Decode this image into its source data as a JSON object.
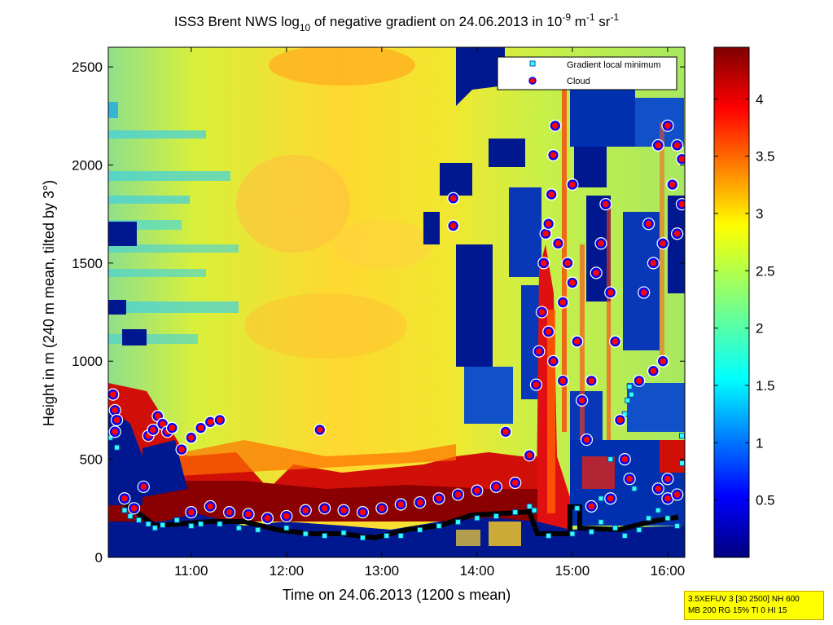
{
  "chart_data": {
    "type": "heatmap",
    "title": {
      "prefix": "ISS3 Brent NWS log",
      "log_base": "10",
      "middle": " of negative gradient on 24.06.2013 in 10",
      "exp1": "-9",
      "unit1": " m",
      "exp2": "-1",
      "unit2": " sr",
      "exp3": "-1"
    },
    "xlabel": "Time on 24.06.2013 (1200 s mean)",
    "ylabel": "Height in m (240 m mean, tilted by 3°)",
    "x_ticks": [
      {
        "value": 11.0,
        "label": "11:00"
      },
      {
        "value": 12.0,
        "label": "12:00"
      },
      {
        "value": 13.0,
        "label": "13:00"
      },
      {
        "value": 14.0,
        "label": "14:00"
      },
      {
        "value": 15.0,
        "label": "15:00"
      },
      {
        "value": 16.0,
        "label": "16:00"
      }
    ],
    "xlim": [
      10.13,
      16.18
    ],
    "ylim": [
      0,
      2600
    ],
    "y_ticks": [
      0,
      500,
      1000,
      1500,
      2000,
      2500
    ],
    "colorbar": {
      "colormap": "jet",
      "range": [
        0,
        4.45
      ],
      "ticks": [
        "0.5",
        "1",
        "1.5",
        "2",
        "2.5",
        "3",
        "3.5",
        "4"
      ]
    },
    "legend": {
      "placement": "top-right",
      "entries": [
        {
          "name": "Gradient local minimum",
          "marker": "square",
          "fill": "#33ffff",
          "edge": "#0055aa"
        },
        {
          "name": "Cloud",
          "marker": "circle",
          "fill": "#ff0000",
          "edge": "#0000ff"
        }
      ]
    },
    "series": [
      {
        "name": "Gradient local minimum",
        "points": [
          [
            10.15,
            610
          ],
          [
            10.22,
            560
          ],
          [
            10.3,
            240
          ],
          [
            10.36,
            210
          ],
          [
            10.45,
            190
          ],
          [
            10.55,
            170
          ],
          [
            10.62,
            150
          ],
          [
            10.7,
            165
          ],
          [
            10.85,
            190
          ],
          [
            11.0,
            160
          ],
          [
            11.1,
            170
          ],
          [
            11.3,
            170
          ],
          [
            11.5,
            150
          ],
          [
            11.7,
            140
          ],
          [
            12.0,
            150
          ],
          [
            12.2,
            120
          ],
          [
            12.4,
            110
          ],
          [
            12.6,
            125
          ],
          [
            12.8,
            100
          ],
          [
            13.05,
            110
          ],
          [
            13.2,
            110
          ],
          [
            13.4,
            140
          ],
          [
            13.6,
            160
          ],
          [
            13.8,
            180
          ],
          [
            14.0,
            200
          ],
          [
            14.2,
            210
          ],
          [
            14.4,
            230
          ],
          [
            14.55,
            260
          ],
          [
            14.6,
            240
          ],
          [
            14.75,
            110
          ],
          [
            15.0,
            120
          ],
          [
            15.05,
            250
          ],
          [
            15.2,
            130
          ],
          [
            15.3,
            180
          ],
          [
            15.45,
            150
          ],
          [
            15.55,
            110
          ],
          [
            15.55,
            730
          ],
          [
            15.6,
            870
          ],
          [
            15.58,
            800
          ],
          [
            15.62,
            830
          ],
          [
            15.7,
            140
          ],
          [
            15.8,
            200
          ],
          [
            15.9,
            240
          ],
          [
            16.0,
            200
          ],
          [
            16.1,
            160
          ],
          [
            16.15,
            480
          ],
          [
            16.15,
            620
          ],
          [
            15.65,
            350
          ],
          [
            15.4,
            500
          ],
          [
            15.3,
            300
          ]
        ]
      },
      {
        "name": "Cloud",
        "points": [
          [
            10.18,
            830
          ],
          [
            10.2,
            750
          ],
          [
            10.22,
            700
          ],
          [
            10.2,
            640
          ],
          [
            10.3,
            300
          ],
          [
            10.4,
            250
          ],
          [
            10.5,
            360
          ],
          [
            10.55,
            620
          ],
          [
            10.6,
            650
          ],
          [
            10.65,
            720
          ],
          [
            10.7,
            680
          ],
          [
            10.75,
            640
          ],
          [
            10.8,
            660
          ],
          [
            10.9,
            550
          ],
          [
            11.0,
            610
          ],
          [
            11.1,
            660
          ],
          [
            11.2,
            690
          ],
          [
            11.3,
            700
          ],
          [
            11.0,
            230
          ],
          [
            11.2,
            260
          ],
          [
            11.4,
            230
          ],
          [
            11.6,
            220
          ],
          [
            11.8,
            200
          ],
          [
            12.0,
            210
          ],
          [
            12.2,
            240
          ],
          [
            12.35,
            650
          ],
          [
            12.4,
            250
          ],
          [
            12.6,
            240
          ],
          [
            12.8,
            230
          ],
          [
            13.0,
            250
          ],
          [
            13.2,
            270
          ],
          [
            13.4,
            280
          ],
          [
            13.6,
            300
          ],
          [
            13.75,
            1830
          ],
          [
            13.75,
            1690
          ],
          [
            13.8,
            320
          ],
          [
            14.0,
            340
          ],
          [
            14.2,
            360
          ],
          [
            14.3,
            640
          ],
          [
            14.4,
            380
          ],
          [
            14.55,
            520
          ],
          [
            14.62,
            880
          ],
          [
            14.65,
            1050
          ],
          [
            14.68,
            1250
          ],
          [
            14.7,
            1500
          ],
          [
            14.72,
            1650
          ],
          [
            14.75,
            1700
          ],
          [
            14.78,
            1850
          ],
          [
            14.8,
            2050
          ],
          [
            14.82,
            2200
          ],
          [
            14.85,
            1600
          ],
          [
            14.9,
            1300
          ],
          [
            14.95,
            1500
          ],
          [
            15.0,
            1900
          ],
          [
            15.0,
            1400
          ],
          [
            15.05,
            1100
          ],
          [
            15.1,
            800
          ],
          [
            15.15,
            600
          ],
          [
            15.2,
            900
          ],
          [
            15.25,
            1450
          ],
          [
            15.3,
            1600
          ],
          [
            15.35,
            1800
          ],
          [
            15.4,
            1350
          ],
          [
            15.45,
            1100
          ],
          [
            15.5,
            700
          ],
          [
            15.55,
            500
          ],
          [
            15.7,
            900
          ],
          [
            15.75,
            1350
          ],
          [
            15.8,
            1700
          ],
          [
            15.85,
            1500
          ],
          [
            15.9,
            2100
          ],
          [
            15.95,
            1600
          ],
          [
            16.0,
            2200
          ],
          [
            16.05,
            1900
          ],
          [
            16.1,
            2100
          ],
          [
            16.15,
            1800
          ],
          [
            15.9,
            350
          ],
          [
            16.0,
            300
          ],
          [
            16.1,
            320
          ],
          [
            15.85,
            950
          ],
          [
            15.95,
            1000
          ],
          [
            16.0,
            400
          ],
          [
            16.15,
            2030
          ],
          [
            16.1,
            1650
          ],
          [
            15.6,
            400
          ],
          [
            15.4,
            300
          ],
          [
            15.2,
            260
          ],
          [
            14.9,
            900
          ],
          [
            14.8,
            1000
          ],
          [
            14.75,
            1150
          ]
        ]
      }
    ]
  },
  "info_box": {
    "line1": "3.5XEFUV 3 [30 2500] NH 600",
    "line2": "MB 200 RG 15% TI 0 HI 15"
  }
}
